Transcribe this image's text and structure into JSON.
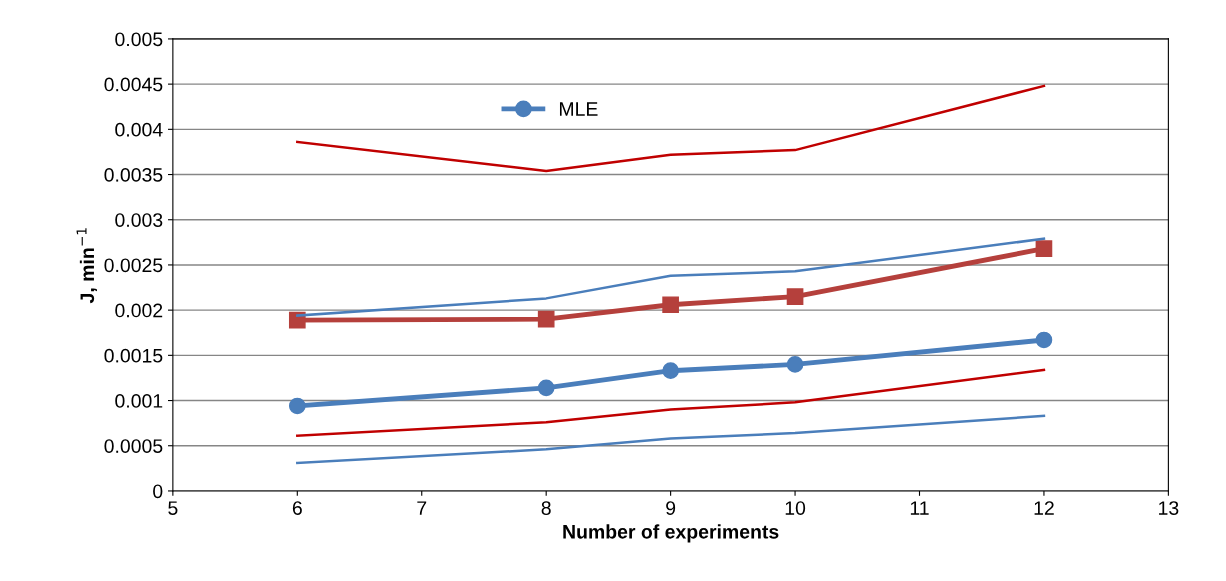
{
  "chart_data": {
    "type": "line",
    "xlabel": "Number of experiments",
    "ylabel": "J, min$^{−1}$",
    "x": [
      6,
      8,
      9,
      10,
      12
    ],
    "series": [
      {
        "color": "#b5403c",
        "marker": "square",
        "values": [
          0.00189,
          0.0019,
          0.00206,
          0.00215,
          0.00268
        ]
      },
      {
        "name": "MLE",
        "color": "#4a7ebb",
        "marker": "circle",
        "values": [
          0.00094,
          0.00114,
          0.00133,
          0.0014,
          0.00167
        ]
      },
      {
        "color": "#c00000",
        "marker": "none",
        "values": [
          0.00386,
          0.00354,
          0.00372,
          0.00377,
          0.00448
        ]
      },
      {
        "color": "#c00000",
        "marker": "none",
        "values": [
          0.00061,
          0.00076,
          0.0009,
          0.00098,
          0.00134
        ]
      },
      {
        "color": "#4a7ebb",
        "marker": "none",
        "values": [
          0.00194,
          0.00213,
          0.00238,
          0.00243,
          0.00279
        ]
      },
      {
        "color": "#4a7ebb",
        "marker": "none",
        "values": [
          0.00031,
          0.00046,
          0.00058,
          0.00064,
          0.00083
        ]
      }
    ],
    "xlim": [
      5,
      13
    ],
    "xticks": [
      5,
      6,
      7,
      8,
      9,
      10,
      11,
      12,
      13
    ],
    "ylim": [
      0,
      0.005
    ],
    "yticks": [
      0,
      0.0005,
      0.001,
      0.0015,
      0.002,
      0.0025,
      0.003,
      0.0035,
      0.004,
      0.0045,
      0.005
    ],
    "grid": "y",
    "legend": "top",
    "line_style": "solid"
  }
}
